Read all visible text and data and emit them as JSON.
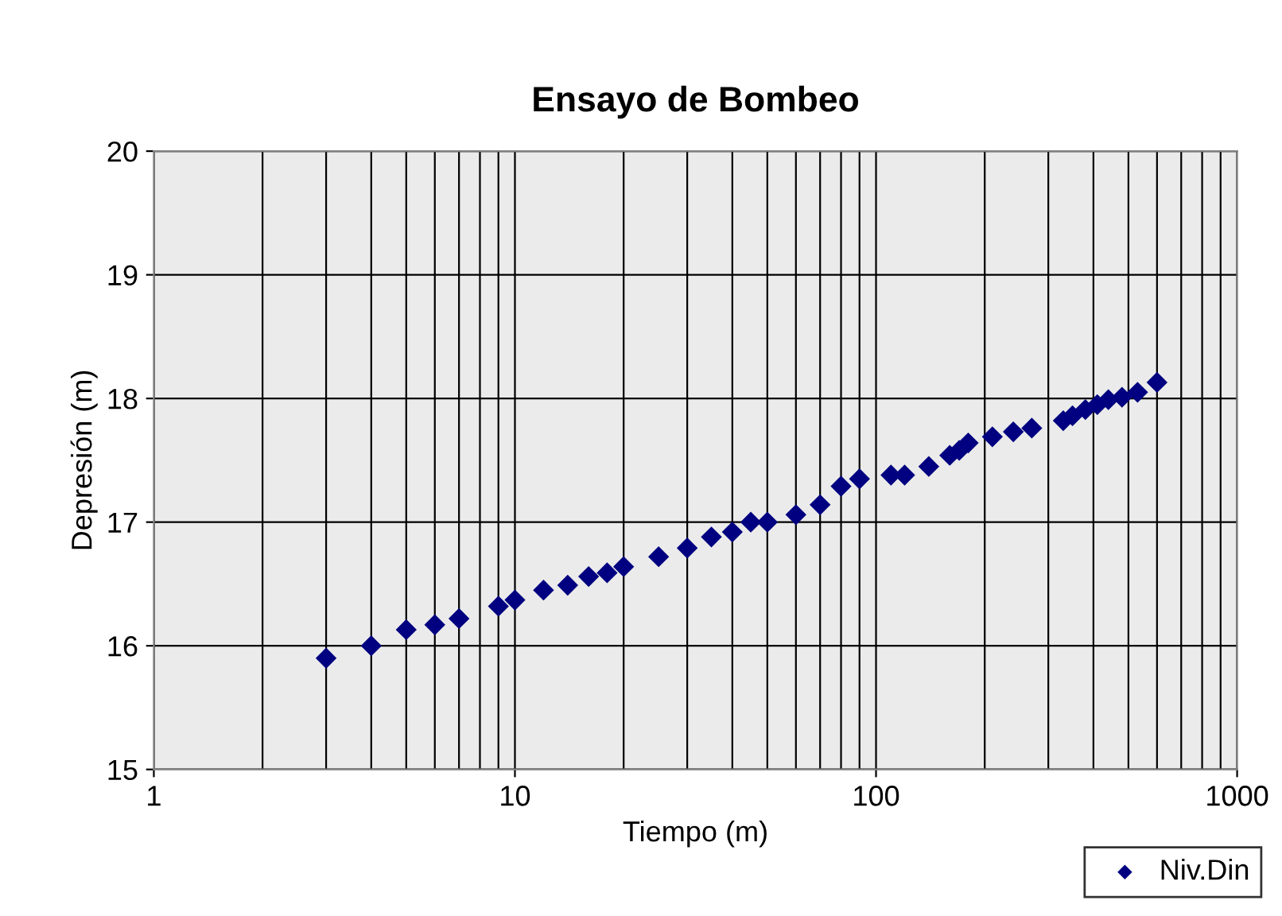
{
  "chart_data": {
    "type": "scatter",
    "title": "Ensayo de Bombeo",
    "xlabel": "Tiempo (m)",
    "ylabel": "Depresión (m)",
    "log": "x",
    "grid": true,
    "legend": "bottom right",
    "marker": "diamond",
    "xlim": [
      1,
      1000
    ],
    "xticks": [
      1,
      10,
      100,
      1000
    ],
    "ylim": [
      15,
      20
    ],
    "yticks": [
      15,
      16,
      17,
      18,
      19,
      20
    ],
    "series": [
      {
        "name": "Niv.Din",
        "color": "#000080",
        "x": [
          3,
          4,
          5,
          6,
          7,
          9,
          10,
          12,
          14,
          16,
          18,
          20,
          25,
          30,
          35,
          40,
          45,
          50,
          60,
          70,
          80,
          90,
          110,
          120,
          140,
          160,
          170,
          180,
          210,
          240,
          270,
          330,
          350,
          380,
          410,
          440,
          480,
          530,
          600
        ],
        "values": [
          15.9,
          16.0,
          16.13,
          16.17,
          16.22,
          16.32,
          16.37,
          16.45,
          16.49,
          16.56,
          16.59,
          16.64,
          16.72,
          16.79,
          16.88,
          16.92,
          17.0,
          17.0,
          17.06,
          17.14,
          17.29,
          17.35,
          17.38,
          17.38,
          17.45,
          17.54,
          17.58,
          17.64,
          17.69,
          17.73,
          17.76,
          17.82,
          17.86,
          17.91,
          17.95,
          17.99,
          18.01,
          18.05,
          18.13
        ]
      }
    ]
  }
}
